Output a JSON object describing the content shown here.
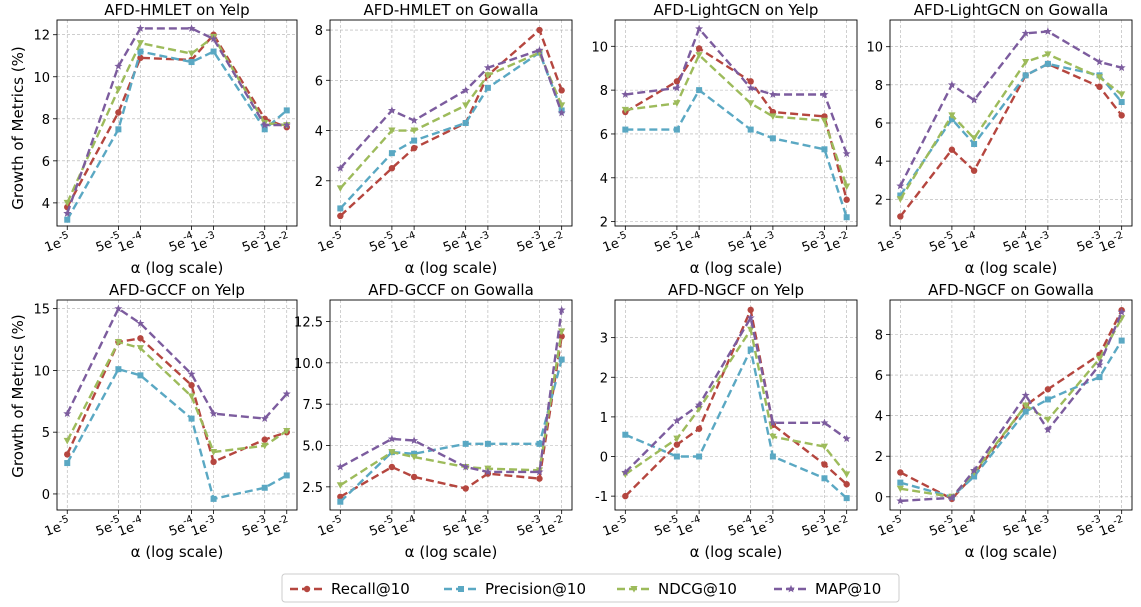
{
  "figure": {
    "y_axis_label": "Growth of Metrics (%)",
    "x_axis_label": "α (log scale)"
  },
  "legend": [
    {
      "name": "Recall@10",
      "color": "#b5463f",
      "marker": "circle"
    },
    {
      "name": "Precision@10",
      "color": "#5aa8c3",
      "marker": "square"
    },
    {
      "name": "NDCG@10",
      "color": "#9dbb5b",
      "marker": "triangle-down"
    },
    {
      "name": "MAP@10",
      "color": "#7c5c9e",
      "marker": "star"
    }
  ],
  "chart_data": [
    {
      "type": "line",
      "title": "AFD-HMLET on Yelp",
      "xlabel": "α (log scale)",
      "ylabel": "Growth of Metrics (%)",
      "x": [
        1e-05,
        5e-05,
        0.0001,
        0.0005,
        0.001,
        0.005,
        0.01
      ],
      "xticks": [
        "1e-5",
        "5e-5",
        "1e-4",
        "5e-4",
        "1e-3",
        "5e-3",
        "1e-2"
      ],
      "ylim": [
        2.9,
        12.7
      ],
      "yticks": [
        4,
        6,
        8,
        10,
        12
      ],
      "grid": true,
      "series": [
        {
          "name": "Recall@10",
          "values": [
            3.8,
            8.3,
            10.9,
            10.8,
            12.0,
            8.0,
            7.6
          ]
        },
        {
          "name": "Precision@10",
          "values": [
            3.2,
            7.5,
            11.2,
            10.7,
            11.2,
            7.5,
            8.4
          ]
        },
        {
          "name": "NDCG@10",
          "values": [
            4.0,
            9.4,
            11.6,
            11.1,
            11.9,
            7.8,
            7.7
          ]
        },
        {
          "name": "MAP@10",
          "values": [
            3.5,
            10.5,
            12.3,
            12.3,
            11.8,
            7.7,
            7.7
          ]
        }
      ]
    },
    {
      "type": "line",
      "title": "AFD-HMLET on Gowalla",
      "x": [
        1e-05,
        5e-05,
        0.0001,
        0.0005,
        0.001,
        0.005,
        0.01
      ],
      "xticks": [
        "1e-5",
        "5e-5",
        "1e-4",
        "5e-4",
        "1e-3",
        "5e-3",
        "1e-2"
      ],
      "ylim": [
        0.2,
        8.4
      ],
      "yticks": [
        2,
        4,
        6,
        8
      ],
      "grid": true,
      "series": [
        {
          "name": "Recall@10",
          "values": [
            0.6,
            2.5,
            3.3,
            4.3,
            6.2,
            8.0,
            5.6
          ]
        },
        {
          "name": "Precision@10",
          "values": [
            0.9,
            3.1,
            3.6,
            4.3,
            5.7,
            7.1,
            4.8
          ]
        },
        {
          "name": "NDCG@10",
          "values": [
            1.7,
            4.0,
            4.0,
            5.0,
            6.2,
            7.1,
            5.0
          ]
        },
        {
          "name": "MAP@10",
          "values": [
            2.5,
            4.8,
            4.4,
            5.6,
            6.5,
            7.2,
            4.7
          ]
        }
      ]
    },
    {
      "type": "line",
      "title": "AFD-LightGCN on Yelp",
      "x": [
        1e-05,
        5e-05,
        0.0001,
        0.0005,
        0.001,
        0.005,
        0.01
      ],
      "xticks": [
        "1e-5",
        "5e-5",
        "1e-4",
        "5e-4",
        "1e-3",
        "5e-3",
        "1e-2"
      ],
      "ylim": [
        1.8,
        11.2
      ],
      "yticks": [
        2,
        4,
        6,
        8,
        10
      ],
      "grid": true,
      "series": [
        {
          "name": "Recall@10",
          "values": [
            7.0,
            8.4,
            9.9,
            8.4,
            7.0,
            6.8,
            3.0
          ]
        },
        {
          "name": "Precision@10",
          "values": [
            6.2,
            6.2,
            8.0,
            6.2,
            5.8,
            5.3,
            2.2
          ]
        },
        {
          "name": "NDCG@10",
          "values": [
            7.1,
            7.4,
            9.6,
            7.4,
            6.8,
            6.6,
            3.6
          ]
        },
        {
          "name": "MAP@10",
          "values": [
            7.8,
            8.1,
            10.8,
            8.1,
            7.8,
            7.8,
            5.1
          ]
        }
      ]
    },
    {
      "type": "line",
      "title": "AFD-LightGCN on Gowalla",
      "x": [
        1e-05,
        5e-05,
        0.0001,
        0.0005,
        0.001,
        0.005,
        0.01
      ],
      "xticks": [
        "1e-5",
        "5e-5",
        "1e-4",
        "5e-4",
        "1e-3",
        "5e-3",
        "1e-2"
      ],
      "ylim": [
        0.6,
        11.4
      ],
      "yticks": [
        2,
        4,
        6,
        8,
        10
      ],
      "grid": true,
      "series": [
        {
          "name": "Recall@10",
          "values": [
            1.1,
            4.6,
            3.5,
            8.5,
            9.1,
            7.9,
            6.4
          ]
        },
        {
          "name": "Precision@10",
          "values": [
            2.2,
            6.2,
            4.9,
            8.5,
            9.1,
            8.5,
            7.1
          ]
        },
        {
          "name": "NDCG@10",
          "values": [
            2.0,
            6.4,
            5.2,
            9.2,
            9.6,
            8.4,
            7.5
          ]
        },
        {
          "name": "MAP@10",
          "values": [
            2.7,
            8.0,
            7.2,
            10.7,
            10.8,
            9.2,
            8.9
          ]
        }
      ]
    },
    {
      "type": "line",
      "title": "AFD-GCCF on Yelp",
      "x": [
        1e-05,
        5e-05,
        0.0001,
        0.0005,
        0.001,
        0.005,
        0.01
      ],
      "xticks": [
        "1e-5",
        "5e-5",
        "1e-4",
        "5e-4",
        "1e-3",
        "5e-3",
        "1e-2"
      ],
      "ylim": [
        -1.3,
        15.7
      ],
      "yticks": [
        0,
        5,
        10,
        15
      ],
      "grid": true,
      "series": [
        {
          "name": "Recall@10",
          "values": [
            3.2,
            12.3,
            12.6,
            8.8,
            2.6,
            4.4,
            5.0
          ]
        },
        {
          "name": "Precision@10",
          "values": [
            2.5,
            10.1,
            9.6,
            6.1,
            -0.4,
            0.5,
            1.5
          ]
        },
        {
          "name": "NDCG@10",
          "values": [
            4.3,
            12.3,
            11.8,
            7.9,
            3.4,
            3.9,
            5.1
          ]
        },
        {
          "name": "MAP@10",
          "values": [
            6.5,
            15.0,
            13.8,
            9.7,
            6.5,
            6.1,
            8.1
          ]
        }
      ]
    },
    {
      "type": "line",
      "title": "AFD-GCCF on Gowalla",
      "x": [
        1e-05,
        5e-05,
        0.0001,
        0.0005,
        0.001,
        0.005,
        0.01
      ],
      "xticks": [
        "1e-5",
        "5e-5",
        "1e-4",
        "5e-4",
        "1e-3",
        "5e-3",
        "1e-2"
      ],
      "ylim": [
        1.1,
        13.8
      ],
      "ytickvalues": [
        2.5,
        5.0,
        7.5,
        10.0,
        12.5
      ],
      "yticks": [
        "2.5",
        "5.0",
        "7.5",
        "10.0",
        "12.5"
      ],
      "grid": true,
      "series": [
        {
          "name": "Recall@10",
          "values": [
            1.9,
            3.7,
            3.1,
            2.4,
            3.3,
            3.0,
            11.6
          ]
        },
        {
          "name": "Precision@10",
          "values": [
            1.6,
            4.6,
            4.5,
            5.1,
            5.1,
            5.1,
            10.2
          ]
        },
        {
          "name": "NDCG@10",
          "values": [
            2.6,
            4.6,
            4.3,
            3.7,
            3.6,
            3.5,
            11.9
          ]
        },
        {
          "name": "MAP@10",
          "values": [
            3.7,
            5.4,
            5.3,
            3.7,
            3.4,
            3.4,
            13.2
          ]
        }
      ]
    },
    {
      "type": "line",
      "title": "AFD-NGCF on Yelp",
      "x": [
        1e-05,
        5e-05,
        0.0001,
        0.0005,
        0.001,
        0.005,
        0.01
      ],
      "xticks": [
        "1e-5",
        "5e-5",
        "1e-4",
        "5e-4",
        "1e-3",
        "5e-3",
        "1e-2"
      ],
      "ylim": [
        -1.35,
        3.95
      ],
      "yticks": [
        -1,
        0,
        1,
        2,
        3
      ],
      "grid": true,
      "series": [
        {
          "name": "Recall@10",
          "values": [
            -1.0,
            0.3,
            0.7,
            3.7,
            0.8,
            -0.2,
            -0.7
          ]
        },
        {
          "name": "Precision@10",
          "values": [
            0.55,
            0.0,
            0.0,
            2.7,
            0.0,
            -0.55,
            -1.05
          ]
        },
        {
          "name": "NDCG@10",
          "values": [
            -0.45,
            0.45,
            1.2,
            3.2,
            0.5,
            0.25,
            -0.45
          ]
        },
        {
          "name": "MAP@10",
          "values": [
            -0.4,
            0.9,
            1.3,
            3.5,
            0.85,
            0.85,
            0.45
          ]
        }
      ]
    },
    {
      "type": "line",
      "title": "AFD-NGCF on Gowalla",
      "x": [
        1e-05,
        5e-05,
        0.0001,
        0.0005,
        0.001,
        0.005,
        0.01
      ],
      "xticks": [
        "1e-5",
        "5e-5",
        "1e-4",
        "5e-4",
        "1e-3",
        "5e-3",
        "1e-2"
      ],
      "ylim": [
        -0.65,
        9.7
      ],
      "yticks": [
        0,
        2,
        4,
        6,
        8
      ],
      "grid": true,
      "series": [
        {
          "name": "Recall@10",
          "values": [
            1.2,
            -0.1,
            1.1,
            4.5,
            5.3,
            7.0,
            9.2
          ]
        },
        {
          "name": "Precision@10",
          "values": [
            0.7,
            0.0,
            1.0,
            4.2,
            4.8,
            5.9,
            7.7
          ]
        },
        {
          "name": "NDCG@10",
          "values": [
            0.4,
            0.0,
            1.2,
            4.5,
            3.8,
            6.8,
            8.8
          ]
        },
        {
          "name": "MAP@10",
          "values": [
            -0.2,
            -0.05,
            1.3,
            5.0,
            3.3,
            6.5,
            9.1
          ]
        }
      ]
    }
  ]
}
